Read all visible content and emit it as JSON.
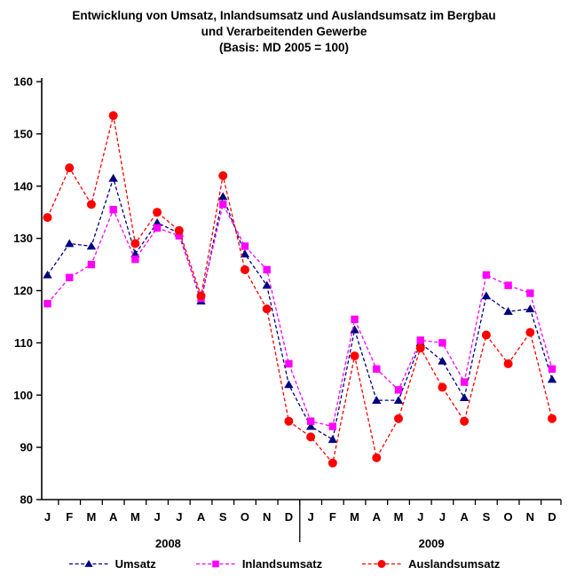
{
  "chart_data": {
    "type": "line",
    "title": "Entwicklung von Umsatz, Inlandsumsatz und Auslandsumsatz im Bergbau und Verarbeitenden Gewerbe (Basis: MD 2005 = 100)",
    "title_lines": [
      "Entwicklung von Umsatz, Inlandsumsatz und Auslandsumsatz im Bergbau",
      "und Verarbeitenden Gewerbe",
      "(Basis: MD 2005 = 100)"
    ],
    "xlabel": "",
    "ylabel": "",
    "ylim": [
      80,
      160
    ],
    "ytick_step": 10,
    "yticks": [
      80,
      90,
      100,
      110,
      120,
      130,
      140,
      150,
      160
    ],
    "grid": false,
    "legend_position": "bottom",
    "month_labels": [
      "J",
      "F",
      "M",
      "A",
      "M",
      "J",
      "J",
      "A",
      "S",
      "O",
      "N",
      "D",
      "J",
      "F",
      "M",
      "A",
      "M",
      "J",
      "J",
      "A",
      "S",
      "O",
      "N",
      "D"
    ],
    "year_groups": [
      {
        "label": "2008",
        "start": 0,
        "end": 11
      },
      {
        "label": "2009",
        "start": 12,
        "end": 23
      }
    ],
    "series": [
      {
        "name": "Umsatz",
        "color": "#000080",
        "marker": "triangle",
        "values": [
          123,
          129,
          128.5,
          141.5,
          127,
          133,
          131,
          118,
          138,
          127,
          121,
          102,
          94,
          91.5,
          112.5,
          99,
          99,
          110,
          106.5,
          99.5,
          119,
          116,
          116.5,
          103
        ]
      },
      {
        "name": "Inlandsumsatz",
        "color": "#ff00ff",
        "marker": "square",
        "values": [
          117.5,
          122.5,
          125,
          135.5,
          126,
          132,
          130.5,
          118.5,
          136.5,
          128.5,
          124,
          106,
          95,
          94,
          114.5,
          105,
          101,
          110.5,
          110,
          102.5,
          123,
          121,
          119.5,
          105
        ]
      },
      {
        "name": "Auslandsumsatz",
        "color": "#ff0000",
        "marker": "circle",
        "values": [
          134,
          143.5,
          136.5,
          153.5,
          129,
          135,
          131.5,
          119,
          142,
          124,
          116.5,
          95,
          92,
          87,
          107.5,
          88,
          95.5,
          109,
          101.5,
          95,
          111.5,
          106,
          112,
          95.5
        ]
      }
    ]
  }
}
